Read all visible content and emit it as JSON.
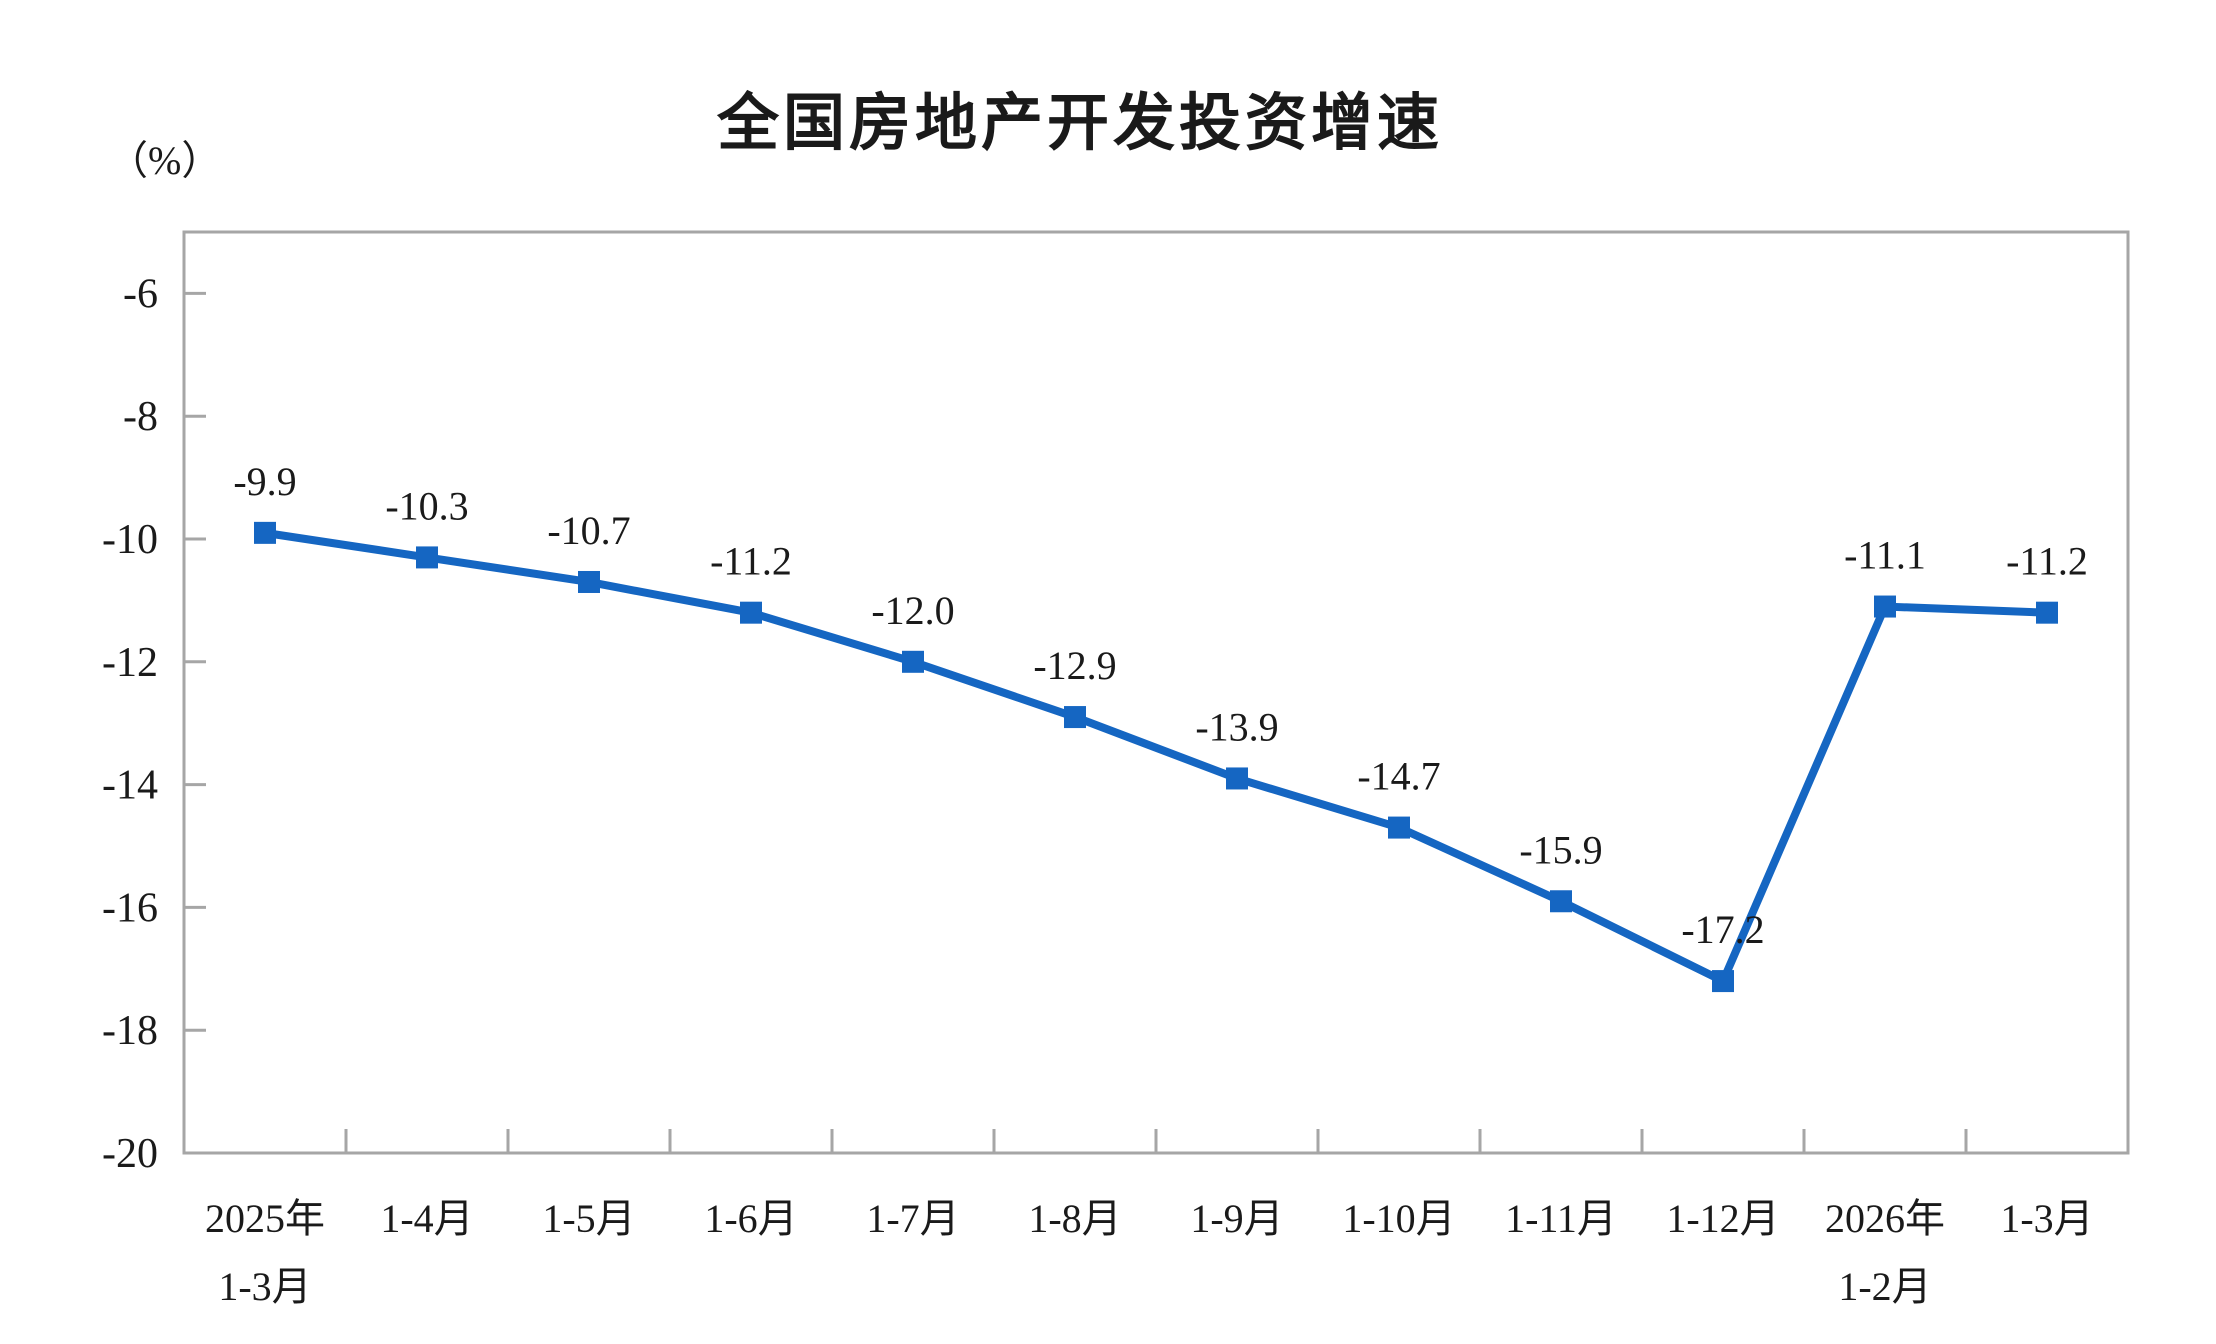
{
  "chart_data": {
    "type": "line",
    "title": "全国房地产开发投资增速",
    "unit_label": "（%）",
    "xlabel": "",
    "ylabel": "（%）",
    "categories": [
      [
        "2025年",
        "1-3月"
      ],
      [
        "1-4月"
      ],
      [
        "1-5月"
      ],
      [
        "1-6月"
      ],
      [
        "1-7月"
      ],
      [
        "1-8月"
      ],
      [
        "1-9月"
      ],
      [
        "1-10月"
      ],
      [
        "1-11月"
      ],
      [
        "1-12月"
      ],
      [
        "2026年",
        "1-2月"
      ],
      [
        "1-3月"
      ]
    ],
    "series": [
      {
        "name": "全国房地产开发投资增速",
        "values": [
          -9.9,
          -10.3,
          -10.7,
          -11.2,
          -12.0,
          -12.9,
          -13.9,
          -14.7,
          -15.9,
          -17.2,
          -11.1,
          -11.2
        ],
        "value_labels": [
          "-9.9",
          "-10.3",
          "-10.7",
          "-11.2",
          "-12.0",
          "-12.9",
          "-13.9",
          "-14.7",
          "-15.9",
          "-17.2",
          "-11.1",
          "-11.2"
        ]
      }
    ],
    "ylim": [
      -20,
      -5
    ],
    "yticks": [
      -20,
      -18,
      -16,
      -14,
      -12,
      -10,
      -8,
      -6
    ],
    "ytick_labels": [
      "-20",
      "-18",
      "-16",
      "-14",
      "-12",
      "-10",
      "-8",
      "-6"
    ],
    "grid": false,
    "legend_position": "none",
    "marker_shape": "square",
    "colors": {
      "line": "#1566C2",
      "marker": "#1566C2",
      "axis_frame": "#A6A6A6",
      "text": "#1A1A1A",
      "background": "#FFFFFF"
    }
  }
}
